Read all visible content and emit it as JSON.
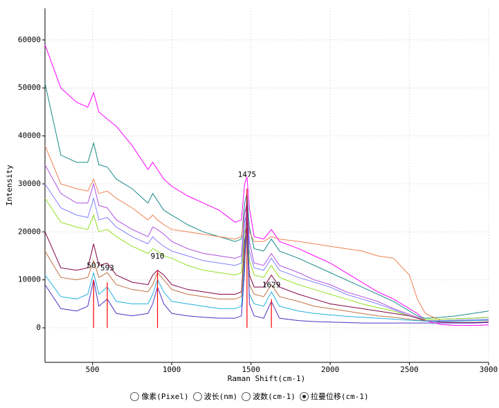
{
  "chart_data": {
    "type": "line",
    "x_label": "Raman Shift(cm-1)",
    "y_label": "Intensity",
    "xlim": [
      200,
      3000
    ],
    "ylim": [
      -7200,
      66600
    ],
    "xticks": [
      500,
      1000,
      1500,
      2000,
      2500,
      3000
    ],
    "yticks": [
      0,
      10000,
      20000,
      30000,
      40000,
      50000,
      60000
    ],
    "grid": true,
    "x": [
      200,
      300,
      400,
      470,
      507,
      540,
      593,
      650,
      750,
      850,
      880,
      910,
      950,
      1000,
      1100,
      1200,
      1300,
      1400,
      1440,
      1460,
      1475,
      1490,
      1520,
      1580,
      1629,
      1680,
      1800,
      1900,
      2000,
      2100,
      2200,
      2300,
      2400,
      2500,
      2550,
      2600,
      2700,
      2800,
      2900,
      3000
    ],
    "series": [
      {
        "color": "#ff00ff",
        "values": [
          59000,
          50000,
          47000,
          46000,
          49000,
          45000,
          43500,
          42000,
          38000,
          33000,
          34500,
          33000,
          31000,
          29500,
          27500,
          26000,
          24500,
          22000,
          22500,
          30000,
          31500,
          25000,
          19000,
          18500,
          20500,
          18000,
          16500,
          15000,
          13500,
          11500,
          9500,
          7500,
          6000,
          4000,
          3000,
          1500,
          700,
          500,
          500,
          600
        ]
      },
      {
        "color": "#1a8a8a",
        "values": [
          51000,
          36000,
          34500,
          34500,
          38500,
          34000,
          33500,
          31000,
          29000,
          26000,
          28000,
          26500,
          24500,
          23500,
          21500,
          20000,
          19000,
          18000,
          18500,
          26000,
          28000,
          21000,
          16500,
          16000,
          18500,
          16000,
          14500,
          13000,
          11500,
          10000,
          8500,
          7000,
          5500,
          3500,
          2500,
          2000,
          2200,
          2500,
          3000,
          3500
        ]
      },
      {
        "color": "#f08050",
        "values": [
          38000,
          30000,
          29000,
          28500,
          31000,
          28000,
          28500,
          27000,
          25000,
          22500,
          23500,
          22500,
          21500,
          20500,
          20000,
          19500,
          19000,
          18500,
          19000,
          24000,
          25000,
          20000,
          18000,
          18000,
          19000,
          18500,
          18000,
          17500,
          17000,
          16500,
          16000,
          15000,
          14500,
          11000,
          6000,
          3000,
          1500,
          1500,
          1500,
          1500
        ]
      },
      {
        "color": "#b050e0",
        "values": [
          34000,
          28000,
          26000,
          26000,
          30000,
          25500,
          25000,
          22500,
          20500,
          19000,
          21000,
          20500,
          19500,
          18000,
          16500,
          15500,
          15000,
          14500,
          15000,
          24000,
          26000,
          18000,
          13500,
          13000,
          15500,
          13000,
          11500,
          10000,
          9000,
          7500,
          6500,
          5500,
          4000,
          2800,
          2200,
          1800,
          1800,
          1900,
          2000,
          2200
        ]
      },
      {
        "color": "#8080ff",
        "values": [
          30000,
          25000,
          23500,
          23000,
          27000,
          22500,
          23000,
          21000,
          19000,
          17500,
          19000,
          18000,
          17000,
          16000,
          15000,
          14000,
          13500,
          13000,
          13500,
          22000,
          24000,
          16000,
          12500,
          12000,
          14500,
          12000,
          10500,
          9500,
          8500,
          7000,
          6000,
          5000,
          3800,
          2500,
          2000,
          1500,
          1500,
          1600,
          1700,
          1800
        ]
      },
      {
        "color": "#90e020",
        "values": [
          27000,
          22000,
          21000,
          20500,
          23500,
          20000,
          20500,
          19000,
          17000,
          15500,
          16500,
          16000,
          15000,
          14500,
          13000,
          12000,
          11500,
          11000,
          11500,
          20000,
          22000,
          14000,
          11000,
          10500,
          13000,
          10500,
          9000,
          8000,
          7000,
          6000,
          5000,
          4200,
          3500,
          2500,
          2000,
          1800,
          1800,
          1900,
          2000,
          2200
        ]
      },
      {
        "color": "#800040",
        "values": [
          20000,
          12500,
          12000,
          12500,
          17500,
          13000,
          13500,
          11000,
          9500,
          9000,
          11000,
          12000,
          11000,
          9000,
          8000,
          7500,
          7000,
          7000,
          7500,
          18000,
          21000,
          11000,
          8500,
          8500,
          11000,
          8500,
          7000,
          6000,
          5000,
          4500,
          4000,
          3500,
          3000,
          2500,
          2000,
          1500,
          1200,
          1100,
          1100,
          1200
        ]
      },
      {
        "color": "#c07040",
        "values": [
          16000,
          10500,
          10000,
          10500,
          14000,
          10500,
          11500,
          9000,
          8000,
          7500,
          9000,
          11500,
          10000,
          8000,
          7000,
          6500,
          6000,
          6000,
          6500,
          16000,
          20000,
          9000,
          7000,
          6500,
          9000,
          6500,
          5500,
          4500,
          4000,
          3500,
          3000,
          2500,
          2200,
          1800,
          1600,
          1500,
          1400,
          1400,
          1500,
          1600
        ]
      },
      {
        "color": "#20b0e0",
        "values": [
          11000,
          6500,
          6000,
          7000,
          11500,
          7000,
          8500,
          5500,
          5000,
          5000,
          7000,
          10000,
          7500,
          5500,
          5000,
          4500,
          4000,
          4000,
          4500,
          14000,
          20000,
          7000,
          5000,
          4500,
          7500,
          4500,
          3500,
          3000,
          2700,
          2400,
          2200,
          2000,
          1800,
          1600,
          1500,
          1400,
          1400,
          1400,
          1500,
          1600
        ]
      },
      {
        "color": "#5030c0",
        "values": [
          9000,
          4000,
          3500,
          4500,
          10000,
          4500,
          6000,
          3000,
          2500,
          3000,
          5000,
          8500,
          5000,
          3000,
          2500,
          2200,
          2000,
          2000,
          2500,
          12000,
          29000,
          5000,
          2500,
          2000,
          5500,
          2000,
          1500,
          1300,
          1200,
          1100,
          1000,
          1000,
          1000,
          1000,
          1000,
          1000,
          1000,
          1000,
          1000,
          1100
        ]
      }
    ],
    "peaks": [
      507,
      593,
      910,
      1475,
      1629
    ],
    "peak_intensities": [
      10000,
      9500,
      12000,
      29000,
      6000
    ],
    "peak_color": "#ff0000"
  },
  "x_unit_options": {
    "options": [
      "像素(Pixel)",
      "波长(nm)",
      "波数(cm-1)",
      "拉曼位移(cm-1)"
    ],
    "selected": 3
  }
}
